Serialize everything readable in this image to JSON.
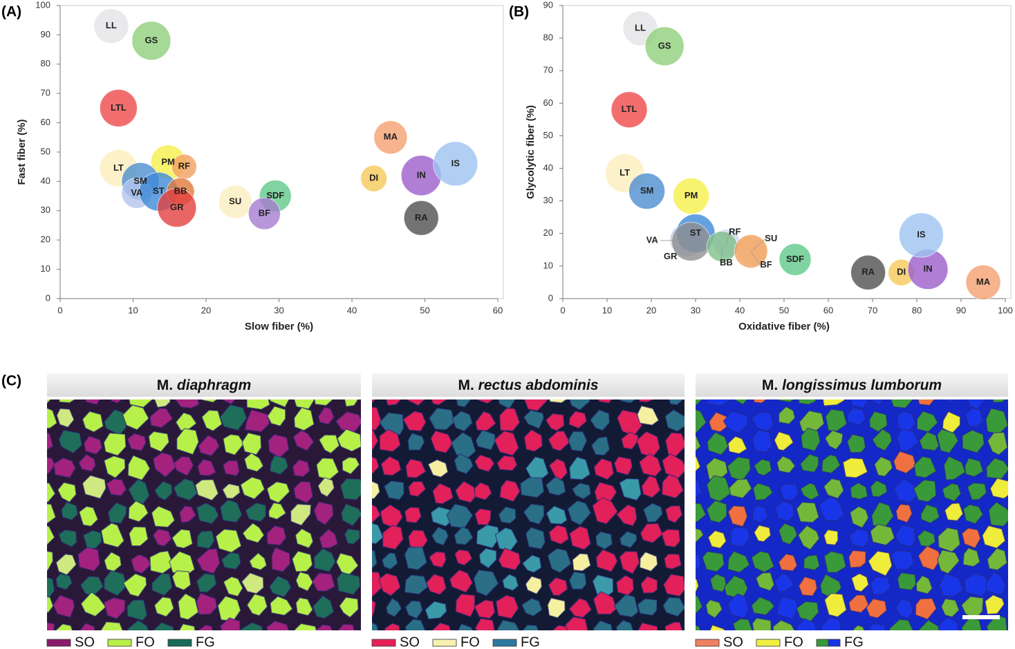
{
  "panel_labels": [
    "(A)",
    "(B)",
    "(C)"
  ],
  "chart_data": [
    {
      "type": "bubble",
      "xlabel": "Slow fiber (%)",
      "ylabel": "Fast fiber (%)",
      "xlim": [
        0,
        60
      ],
      "ylim": [
        0,
        100
      ],
      "xticks": [
        0,
        10,
        20,
        30,
        40,
        50,
        60
      ],
      "yticks": [
        0,
        10,
        20,
        30,
        40,
        50,
        60,
        70,
        80,
        90,
        100
      ],
      "labels": [
        "LL",
        "GS",
        "LTL",
        "LT",
        "PM",
        "RF",
        "SM",
        "VA",
        "ST",
        "BB",
        "GR",
        "SU",
        "SDF",
        "BF",
        "MA",
        "DI",
        "IN",
        "IS",
        "RA"
      ],
      "x": [
        7,
        12.5,
        8,
        8,
        14.8,
        17,
        11,
        10.5,
        13.5,
        16.5,
        16,
        24,
        29.5,
        28,
        45.3,
        43,
        49.5,
        54.2,
        49.5
      ],
      "y": [
        93,
        88,
        65,
        44.5,
        46.5,
        45,
        40,
        36,
        36.5,
        36.5,
        31,
        33,
        35,
        29,
        55,
        41,
        42,
        46,
        27.5
      ],
      "sizes": [
        25,
        28,
        27,
        27,
        25,
        18,
        27,
        22,
        28,
        20,
        28,
        24,
        23,
        23,
        24,
        19,
        29,
        32,
        25
      ],
      "colors": [
        "#e3e3e6",
        "#8fcf7a",
        "#ef4a4a",
        "#fbedbb",
        "#f5f04a",
        "#f0a060",
        "#4d8fd0",
        "#b4c4ec",
        "#3f8ad6",
        "#e07a3a",
        "#e34040",
        "#fbeec0",
        "#5fc98a",
        "#a57cd0",
        "#f4a070",
        "#f5c857",
        "#9c5ecb",
        "#9ec3f0",
        "#505050"
      ]
    },
    {
      "type": "bubble",
      "xlabel": "Oxidative fiber (%)",
      "ylabel": "Glycolytic fiber (%)",
      "xlim": [
        0,
        100
      ],
      "ylim": [
        0,
        90
      ],
      "xticks": [
        0,
        10,
        20,
        30,
        40,
        50,
        60,
        70,
        80,
        90,
        100
      ],
      "yticks": [
        0,
        10,
        20,
        30,
        40,
        50,
        60,
        70,
        80,
        90
      ],
      "labels": [
        "LL",
        "GS",
        "LTL",
        "LT",
        "SM",
        "PM",
        "VA",
        "ST",
        "RF",
        "GR",
        "BB",
        "SU",
        "BF",
        "SDF",
        "RA",
        "DI",
        "IN",
        "IS",
        "MA"
      ],
      "x": [
        17.5,
        23,
        15,
        14,
        19,
        29,
        28,
        30,
        37,
        29,
        36,
        43,
        42.5,
        52.5,
        69,
        76.5,
        82.5,
        81,
        95
      ],
      "y": [
        83,
        77.5,
        58,
        38.5,
        33,
        31.5,
        18,
        20,
        17,
        17.5,
        16,
        15,
        14.5,
        12,
        8,
        8,
        9,
        19.5,
        5
      ],
      "sizes": [
        25,
        28,
        26,
        28,
        26,
        26,
        24,
        28,
        20,
        28,
        22,
        22,
        24,
        23,
        25,
        19,
        29,
        32,
        25
      ],
      "colors": [
        "#e3e3e6",
        "#8fcf7a",
        "#ef4a4a",
        "#fbedbb",
        "#4d8fd0",
        "#f5f04a",
        "#b4c4ec",
        "#3f8ad6",
        "#c8d4f0",
        "#909090",
        "#7fbf8a",
        "#fbeec0",
        "#f0a060",
        "#5fc98a",
        "#505050",
        "#f5c857",
        "#9c5ecb",
        "#9ec3f0",
        "#f4a070"
      ]
    }
  ],
  "micrographs": [
    {
      "prefix": "M.",
      "title": "diaphragm",
      "legend": [
        "SO",
        "FO",
        "FG"
      ]
    },
    {
      "prefix": "M.",
      "title": "rectus abdominis",
      "legend": [
        "SO",
        "FO",
        "FG"
      ]
    },
    {
      "prefix": "M.",
      "title": "longissimus lumborum",
      "legend": [
        "SO",
        "FO",
        "FG"
      ]
    }
  ]
}
